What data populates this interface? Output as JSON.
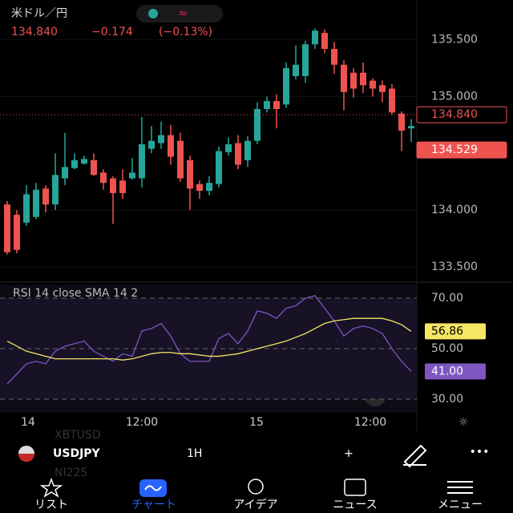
{
  "header": {
    "symbol_name": "米ドル／円",
    "price": "134.840",
    "change": "−0.174",
    "change_pct": "(−0.13%)"
  },
  "chart_data": [
    {
      "type": "candlestick",
      "open": [
        134.05,
        133.96,
        133.89,
        133.94,
        134.19,
        134.05,
        134.28,
        134.37,
        134.41,
        134.44,
        134.33,
        134.28,
        134.26,
        134.28,
        134.28,
        134.54,
        134.59,
        134.66,
        134.61,
        134.44,
        134.23,
        134.17,
        134.23,
        134.51,
        134.59,
        134.44,
        134.61,
        134.89,
        134.96,
        134.93,
        135.18,
        135.18,
        135.46,
        135.56,
        135.42,
        135.28,
        135.21,
        135.21,
        135.14,
        135.1,
        135.07,
        134.85,
        134.72
      ],
      "high": [
        134.08,
        134.0,
        134.22,
        134.24,
        134.22,
        134.5,
        134.68,
        134.5,
        134.48,
        134.5,
        134.36,
        134.3,
        134.36,
        134.46,
        134.82,
        134.74,
        134.78,
        134.75,
        134.68,
        134.48,
        134.26,
        134.3,
        134.56,
        134.64,
        134.66,
        134.65,
        134.95,
        135.0,
        135.02,
        135.3,
        135.45,
        135.49,
        135.6,
        135.59,
        135.48,
        135.32,
        135.25,
        135.3,
        135.16,
        135.14,
        135.11,
        134.87,
        134.8
      ],
      "low": [
        133.61,
        133.62,
        133.86,
        133.92,
        133.98,
        134.0,
        134.22,
        134.36,
        134.4,
        134.3,
        134.18,
        133.88,
        134.1,
        134.27,
        134.2,
        134.5,
        134.54,
        134.4,
        134.25,
        134.0,
        134.1,
        134.13,
        134.2,
        134.48,
        134.36,
        134.38,
        134.58,
        134.86,
        134.72,
        134.9,
        135.15,
        135.12,
        135.42,
        135.38,
        135.2,
        134.88,
        134.99,
        135.03,
        135.0,
        134.95,
        134.84,
        134.52,
        134.6
      ],
      "close": [
        133.63,
        133.65,
        134.14,
        134.18,
        134.05,
        134.31,
        134.38,
        134.44,
        134.45,
        134.31,
        134.24,
        134.15,
        134.15,
        134.33,
        134.58,
        134.61,
        134.66,
        134.47,
        134.28,
        134.19,
        134.17,
        134.24,
        134.52,
        134.58,
        134.4,
        134.61,
        134.89,
        134.96,
        134.89,
        135.25,
        135.28,
        135.46,
        135.58,
        135.42,
        135.28,
        135.04,
        135.07,
        135.1,
        135.07,
        135.04,
        134.86,
        134.7,
        134.74
      ],
      "up_color": "#26a69a",
      "down_color": "#ef5350",
      "ylim": [
        133.38,
        135.85
      ],
      "yticks": [
        {
          "value": 133.5,
          "label": "133.500"
        },
        {
          "value": 134.0,
          "label": "134.000"
        },
        {
          "value": 135.0,
          "label": "135.000"
        },
        {
          "value": 135.5,
          "label": "135.500"
        }
      ],
      "price_lines": [
        {
          "value": 134.84,
          "label": "134.840"
        },
        {
          "value": 134.529,
          "label": "134.529"
        }
      ]
    },
    {
      "type": "line",
      "title": "RSI 14 close SMA 14 2",
      "series": [
        {
          "color": "#7e57c2",
          "values": [
            36,
            40,
            44,
            45,
            44,
            49,
            51,
            52,
            53,
            49,
            47,
            45,
            48,
            47,
            57,
            58,
            60,
            55,
            48,
            45,
            45,
            45,
            54,
            56,
            52,
            57,
            65,
            64,
            62,
            66,
            67,
            70,
            71,
            66,
            61,
            55,
            58,
            59,
            58,
            56,
            50,
            45,
            41
          ],
          "end_label": "41.00"
        },
        {
          "color": "#f5e663",
          "values": [
            53,
            51,
            49,
            48,
            47,
            46,
            46,
            46,
            46,
            46,
            46,
            46,
            45.5,
            46,
            47,
            48,
            48.5,
            48.5,
            48,
            48,
            47.5,
            47,
            47,
            47.5,
            48,
            49,
            50,
            51,
            52,
            53,
            54.5,
            56,
            58,
            60,
            61,
            61.5,
            62,
            62,
            62,
            62,
            61,
            59.5,
            56.86
          ],
          "end_label": "56.86"
        }
      ],
      "ylim": [
        24.6,
        75.4
      ],
      "yticks": [
        {
          "value": 30,
          "label": "30.00"
        },
        {
          "value": 50,
          "label": "50.00"
        },
        {
          "value": 70,
          "label": "70.00"
        }
      ],
      "xlabels": [
        "14",
        "12:00",
        "15",
        "12:00"
      ]
    }
  ],
  "toolbar": {
    "symbol": "USDJPY",
    "interval": "1H",
    "ghost": [
      "XBTUSD",
      "NI225"
    ]
  },
  "nav": [
    "リスト",
    "チャート",
    "アイデア",
    "ニュース",
    "メニュー"
  ]
}
